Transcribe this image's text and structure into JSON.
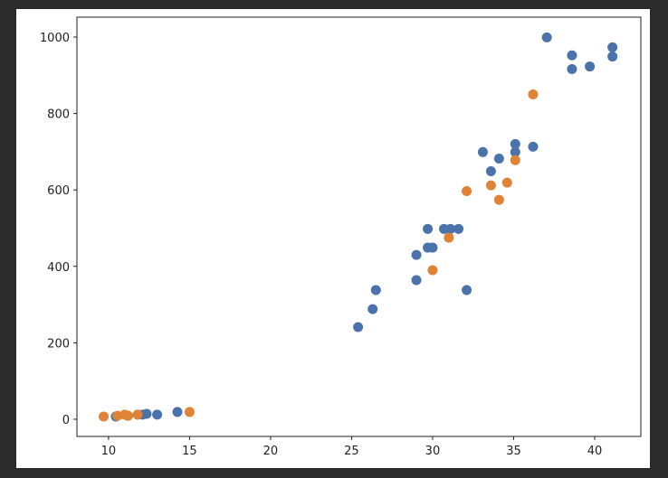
{
  "chart_data": {
    "type": "scatter",
    "xlim": [
      8.05,
      42.85
    ],
    "xticks": [
      10,
      15,
      20,
      25,
      30,
      35,
      40
    ],
    "ylim": [
      -45,
      1052
    ],
    "yticks": [
      0,
      200,
      400,
      600,
      800,
      1000
    ],
    "grid": false,
    "series": [
      {
        "color": "#4a72ab",
        "x": [
          10.45,
          11.2,
          11.8,
          12.1,
          12.35,
          13.0,
          14.25,
          25.4,
          26.3,
          26.5,
          29.0,
          29.0,
          29.7,
          29.7,
          30.0,
          30.7,
          31.1,
          31.6,
          32.1,
          33.1,
          33.6,
          34.1,
          35.1,
          35.1,
          36.2,
          37.05,
          38.6,
          38.6,
          39.7,
          41.1,
          41.1
        ],
        "values": [
          7,
          9,
          12,
          12,
          14,
          12,
          19,
          241,
          288,
          338,
          364,
          430,
          498,
          449,
          449,
          498,
          498,
          498,
          338,
          699,
          649,
          682,
          720,
          699,
          713,
          999,
          952,
          916,
          923,
          973,
          949
        ]
      },
      {
        "color": "#e08335",
        "x": [
          9.7,
          10.55,
          11.0,
          11.2,
          11.8,
          15.0,
          30.0,
          31.0,
          32.1,
          33.6,
          34.1,
          34.6,
          35.1,
          36.2
        ],
        "values": [
          7,
          9,
          12,
          9,
          12,
          19,
          390,
          475,
          597,
          612,
          574,
          619,
          678,
          850
        ]
      }
    ]
  }
}
